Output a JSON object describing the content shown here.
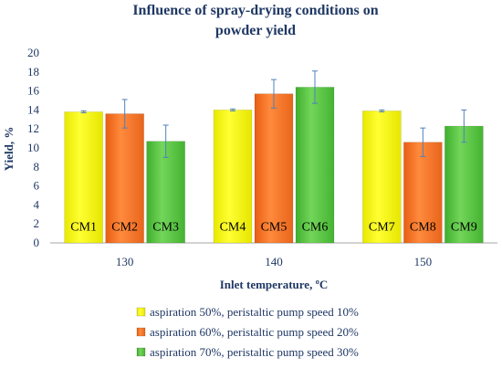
{
  "chart_data": {
    "type": "bar",
    "title_lines": [
      "Influence of spray-drying conditions on",
      "powder yield"
    ],
    "xlabel": "Inlet temperature, ºC",
    "ylabel": "Yield, %",
    "ylim": [
      0,
      20
    ],
    "yticks": [
      0,
      2,
      4,
      6,
      8,
      10,
      12,
      14,
      16,
      18,
      20
    ],
    "categories": [
      "130",
      "140",
      "150"
    ],
    "grid": false,
    "legend_position": "bottom",
    "series": [
      {
        "name": "aspiration 50%, peristaltic pump speed 10%",
        "color": "#ffff00",
        "values": [
          13.8,
          14.0,
          13.9
        ],
        "errors": [
          0.1,
          0.1,
          0.1
        ],
        "bar_labels": [
          "CM1",
          "CM4",
          "CM7"
        ]
      },
      {
        "name": "aspiration 60%, peristaltic pump speed 20%",
        "color": "#ff7a2a",
        "values": [
          13.6,
          15.7,
          10.6
        ],
        "errors": [
          1.5,
          1.5,
          1.5
        ],
        "bar_labels": [
          "CM2",
          "CM5",
          "CM8"
        ]
      },
      {
        "name": "aspiration 70%, peristaltic pump speed 30%",
        "color": "#5fc94a",
        "values": [
          10.7,
          16.4,
          12.3
        ],
        "errors": [
          1.7,
          1.7,
          1.7
        ],
        "bar_labels": [
          "CM3",
          "CM6",
          "CM9"
        ]
      }
    ]
  }
}
